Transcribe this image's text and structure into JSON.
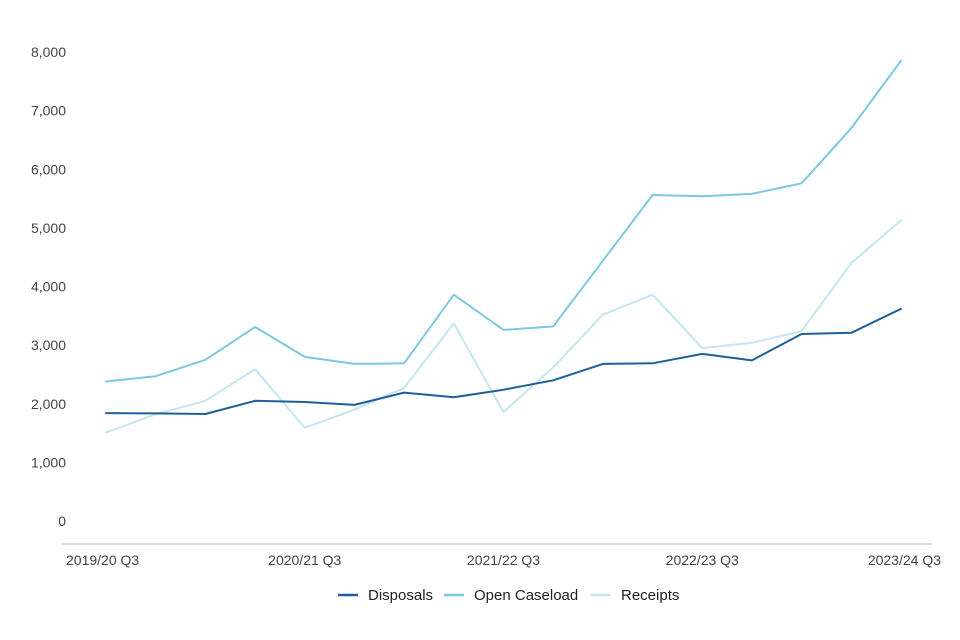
{
  "chart_data": {
    "type": "line",
    "x": [
      "2019/20 Q3",
      "2019/20 Q4",
      "2020/21 Q1",
      "2020/21 Q2",
      "2020/21 Q3",
      "2020/21 Q4",
      "2021/22 Q1",
      "2021/22 Q2",
      "2021/22 Q3",
      "2021/22 Q4",
      "2022/23 Q1",
      "2022/23 Q2",
      "2022/23 Q3",
      "2022/23 Q4",
      "2023/24 Q1",
      "2023/24 Q2",
      "2023/24 Q3"
    ],
    "x_tick_labels": [
      "2019/20 Q3",
      "2020/21 Q3",
      "2021/22 Q3",
      "2022/23 Q3",
      "2023/24 Q3"
    ],
    "y_ticks": [
      0,
      1000,
      2000,
      3000,
      4000,
      5000,
      6000,
      7000,
      8000
    ],
    "y_tick_labels": [
      "0",
      "1,000",
      "2,000",
      "3,000",
      "4,000",
      "5,000",
      "6,000",
      "7,000",
      "8,000"
    ],
    "ylim": [
      0,
      8000
    ],
    "series": [
      {
        "name": "Disposals",
        "color": "#1f5f9a",
        "values": [
          1840,
          1835,
          1825,
          2050,
          2030,
          1980,
          2190,
          2110,
          2240,
          2400,
          2680,
          2690,
          2850,
          2740,
          3190,
          3210,
          3620
        ]
      },
      {
        "name": "Open Caseload",
        "color": "#7cc8df",
        "values": [
          2380,
          2470,
          2750,
          3310,
          2800,
          2680,
          2690,
          3860,
          3260,
          3320,
          4440,
          5560,
          5540,
          5580,
          5760,
          6700,
          7850
        ]
      },
      {
        "name": "Receipts",
        "color": "#c5e5f0",
        "values": [
          1510,
          1820,
          2050,
          2590,
          1590,
          1900,
          2270,
          3370,
          1860,
          2620,
          3520,
          3860,
          2950,
          3040,
          3240,
          4400,
          5130
        ]
      }
    ],
    "legend": {
      "position": "bottom"
    },
    "grid": false
  }
}
